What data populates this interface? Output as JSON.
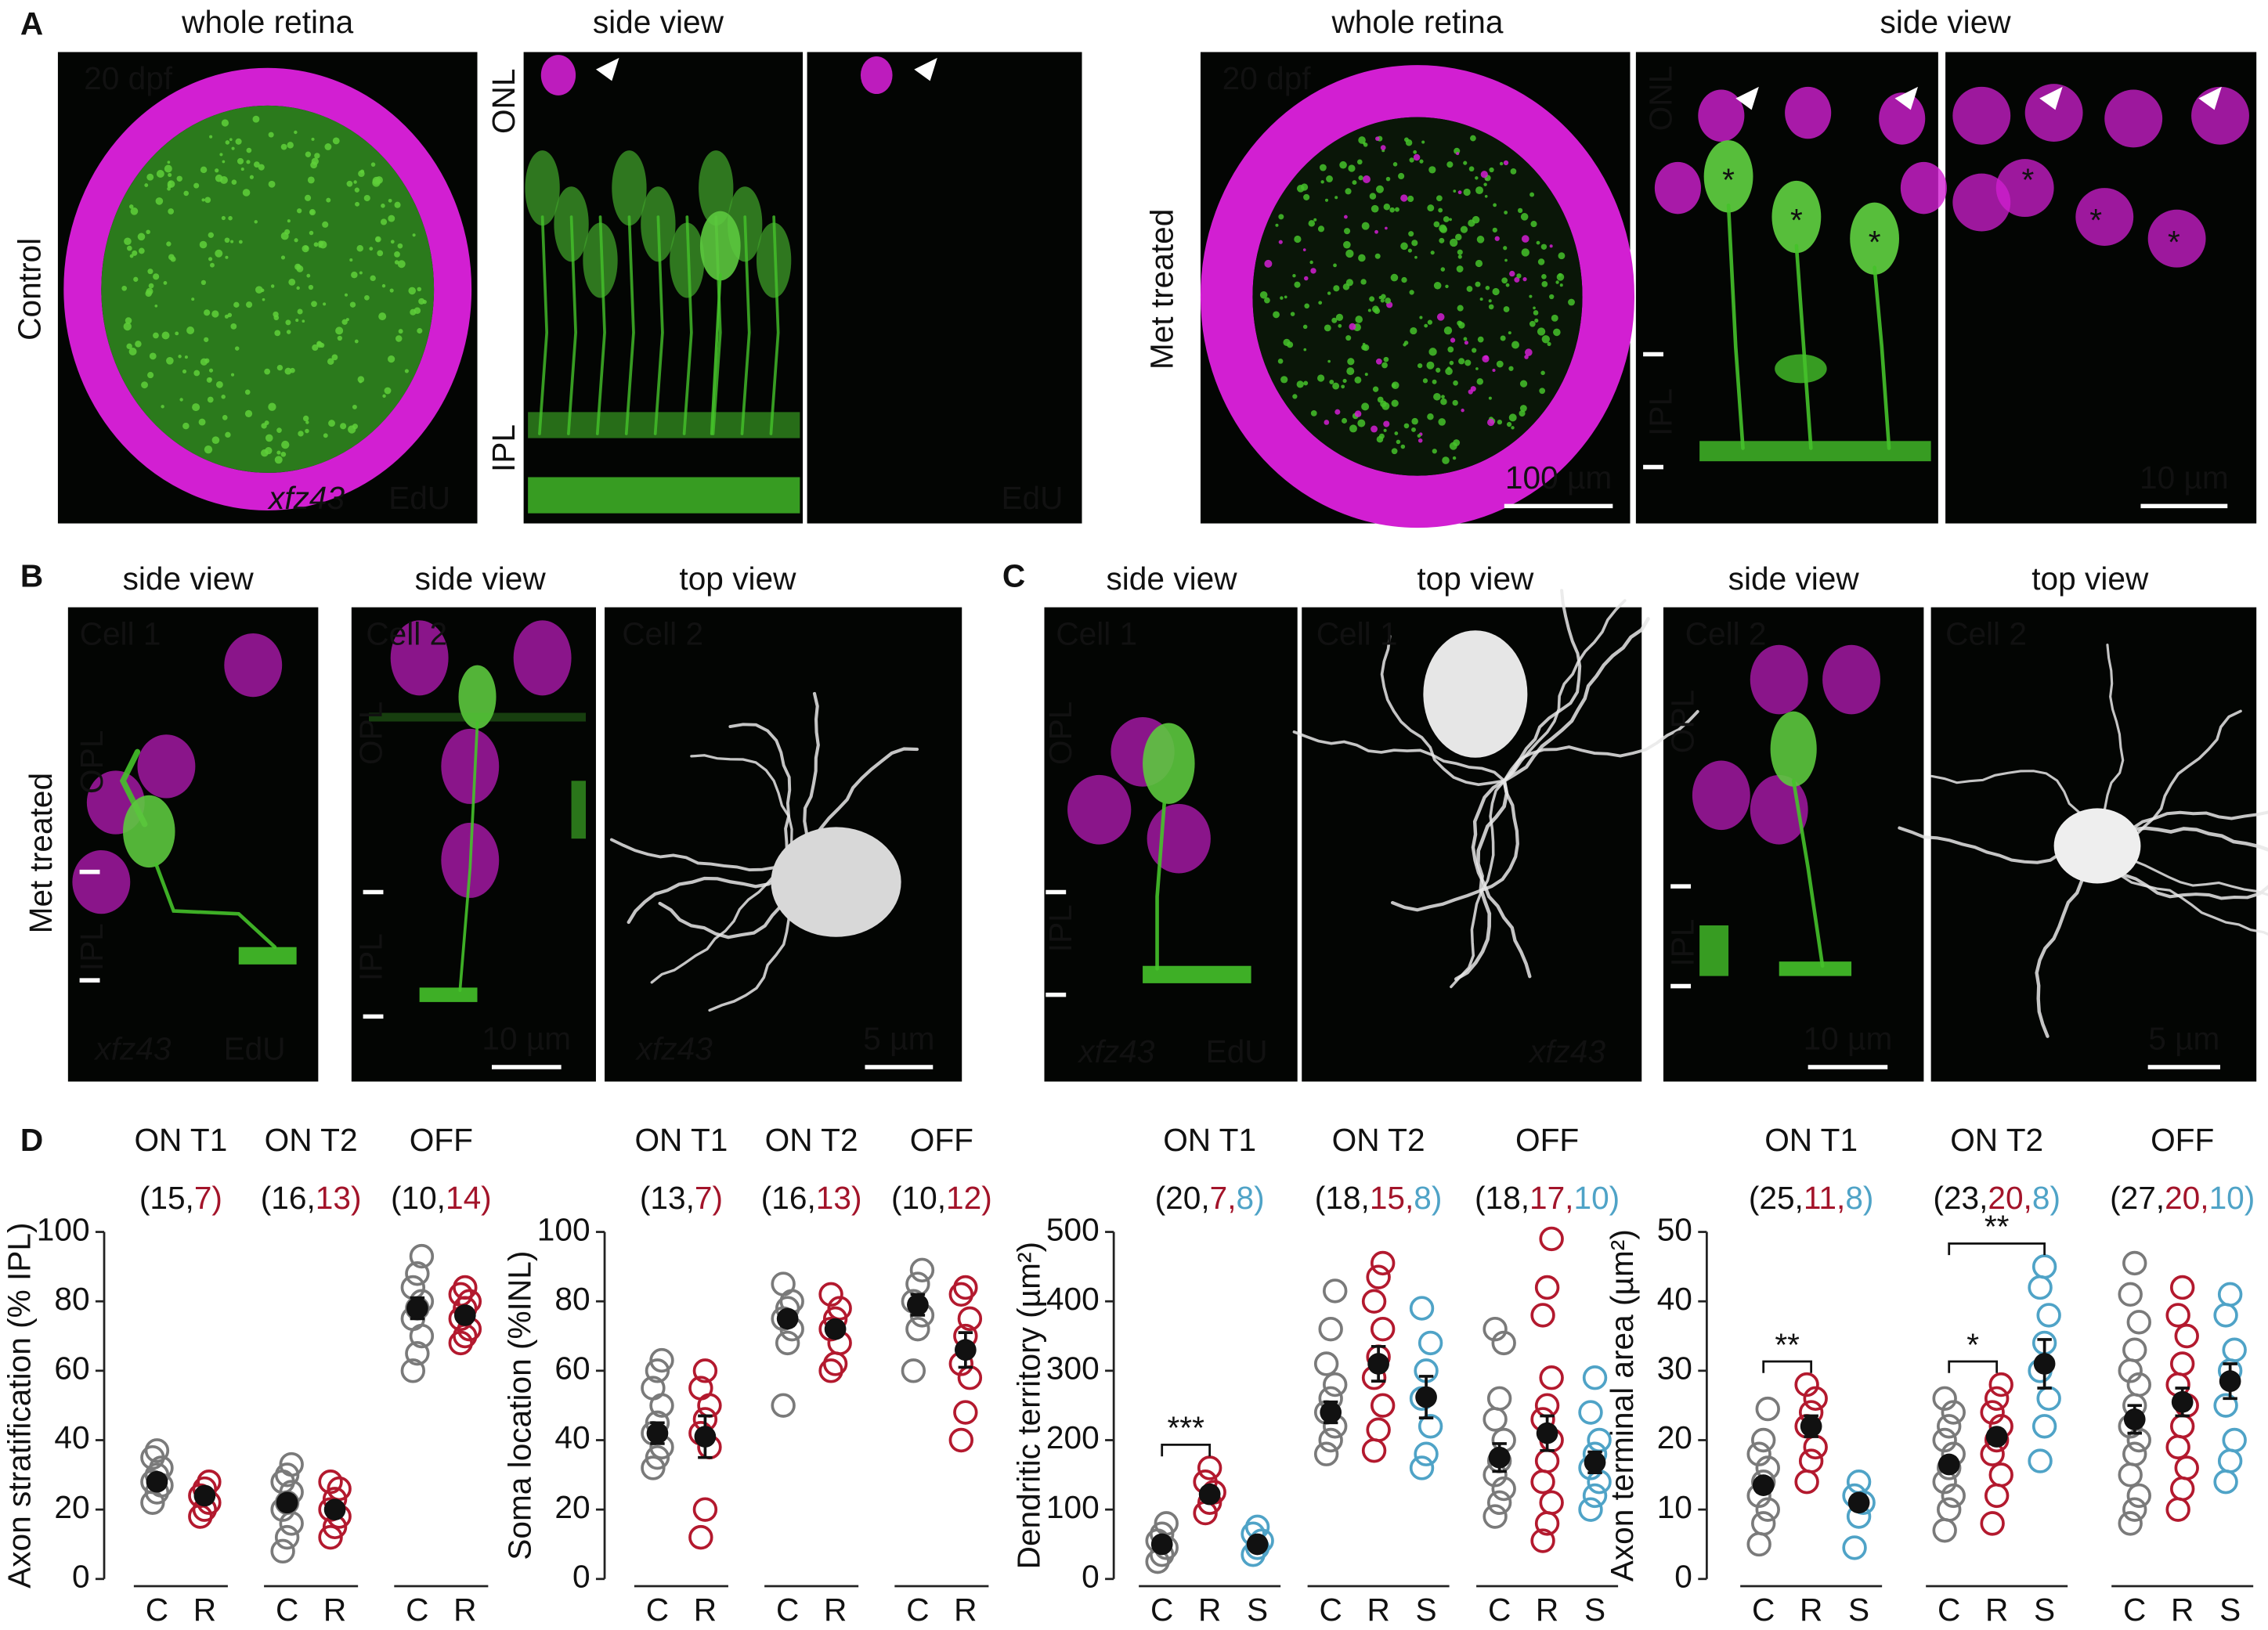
{
  "figure": {
    "panel_labels": [
      "A",
      "B",
      "C",
      "D"
    ],
    "conditions": [
      "Control",
      "Met treated"
    ],
    "views": [
      "whole retina",
      "side view",
      "top view"
    ],
    "age": "20 dpf",
    "reporter": "xfz43",
    "stain": "EdU",
    "layers": [
      "ONL",
      "OPL",
      "IPL"
    ],
    "cells": [
      "Cell 1",
      "Cell 2"
    ],
    "scale_bars": [
      "100 µm",
      "10 µm",
      "5 µm"
    ],
    "marker": "*"
  },
  "chart_data": [
    {
      "type": "strip",
      "ylabel": "Axon stratification (% IPL)",
      "ylim": [
        0,
        100
      ],
      "yticks": [
        0,
        20,
        40,
        60,
        80,
        100
      ],
      "groups": [
        {
          "title": "ON T1",
          "n_label": [
            "(15,",
            "7)"
          ],
          "series": [
            {
              "name": "C",
              "color": "#7a7a7a",
              "text_color": "#111111",
              "values": [
                22,
                25,
                27,
                28,
                30,
                32,
                35,
                37
              ],
              "mean": 28,
              "sem": 1.5
            },
            {
              "name": "R",
              "color": "#b3192e",
              "text_color": "#a3142a",
              "values": [
                18,
                20,
                22,
                24,
                26,
                28
              ],
              "mean": 24,
              "sem": 1.5
            }
          ]
        },
        {
          "title": "ON T2",
          "n_label": [
            "(16,",
            "13)"
          ],
          "series": [
            {
              "name": "C",
              "color": "#7a7a7a",
              "text_color": "#111111",
              "values": [
                8,
                12,
                16,
                20,
                22,
                25,
                28,
                30,
                33
              ],
              "mean": 22,
              "sem": 2
            },
            {
              "name": "R",
              "color": "#b3192e",
              "text_color": "#a3142a",
              "values": [
                12,
                15,
                18,
                20,
                23,
                26,
                28
              ],
              "mean": 20,
              "sem": 1.5
            }
          ]
        },
        {
          "title": "OFF",
          "n_label": [
            "(10,",
            "14)"
          ],
          "series": [
            {
              "name": "C",
              "color": "#7a7a7a",
              "text_color": "#111111",
              "values": [
                60,
                65,
                70,
                75,
                78,
                80,
                84,
                88,
                93
              ],
              "mean": 78,
              "sem": 3
            },
            {
              "name": "R",
              "color": "#b3192e",
              "text_color": "#a3142a",
              "values": [
                68,
                70,
                72,
                75,
                78,
                80,
                82,
                84
              ],
              "mean": 76,
              "sem": 1.5
            }
          ]
        }
      ]
    },
    {
      "type": "strip",
      "ylabel": "Soma location (%INL)",
      "ylim": [
        0,
        100
      ],
      "yticks": [
        0,
        20,
        40,
        60,
        80,
        100
      ],
      "groups": [
        {
          "title": "ON T1",
          "n_label": [
            "(13,",
            "7)"
          ],
          "series": [
            {
              "name": "C",
              "color": "#7a7a7a",
              "text_color": "#111111",
              "values": [
                32,
                35,
                38,
                42,
                45,
                50,
                55,
                60,
                63
              ],
              "mean": 42,
              "sem": 3
            },
            {
              "name": "R",
              "color": "#b3192e",
              "text_color": "#a3142a",
              "values": [
                12,
                20,
                38,
                42,
                46,
                50,
                55,
                60
              ],
              "mean": 41,
              "sem": 6
            }
          ]
        },
        {
          "title": "ON T2",
          "n_label": [
            "(16,",
            "13)"
          ],
          "series": [
            {
              "name": "C",
              "color": "#7a7a7a",
              "text_color": "#111111",
              "values": [
                50,
                68,
                72,
                75,
                78,
                80,
                85
              ],
              "mean": 75,
              "sem": 2
            },
            {
              "name": "R",
              "color": "#b3192e",
              "text_color": "#a3142a",
              "values": [
                60,
                62,
                68,
                72,
                75,
                78,
                82
              ],
              "mean": 72,
              "sem": 2
            }
          ]
        },
        {
          "title": "OFF",
          "n_label": [
            "(10,",
            "12)"
          ],
          "series": [
            {
              "name": "C",
              "color": "#7a7a7a",
              "text_color": "#111111",
              "values": [
                60,
                72,
                76,
                80,
                85,
                89
              ],
              "mean": 79,
              "sem": 3
            },
            {
              "name": "R",
              "color": "#b3192e",
              "text_color": "#a3142a",
              "values": [
                40,
                48,
                58,
                62,
                70,
                75,
                82,
                84
              ],
              "mean": 66,
              "sem": 5
            }
          ]
        }
      ]
    },
    {
      "type": "strip",
      "ylabel": "Dendritic territory (µm²)",
      "ylim": [
        0,
        500
      ],
      "yticks": [
        0,
        100,
        200,
        300,
        400,
        500
      ],
      "groups": [
        {
          "title": "ON T1",
          "n_label": [
            "(20,",
            "7,",
            "8)"
          ],
          "significance": [
            {
              "label": "***",
              "pair": [
                "C",
                "R"
              ]
            }
          ],
          "series": [
            {
              "name": "C",
              "color": "#7a7a7a",
              "text_color": "#111111",
              "values": [
                25,
                35,
                45,
                55,
                65,
                80
              ],
              "mean": 50,
              "sem": 4
            },
            {
              "name": "R",
              "color": "#b3192e",
              "text_color": "#a3142a",
              "values": [
                95,
                110,
                125,
                140,
                160
              ],
              "mean": 122,
              "sem": 8
            },
            {
              "name": "S",
              "color": "#4fa3c7",
              "text_color": "#4fa3c7",
              "values": [
                35,
                45,
                55,
                65,
                75
              ],
              "mean": 50,
              "sem": 5
            }
          ]
        },
        {
          "title": "ON T2",
          "n_label": [
            "(18,",
            "15,",
            "8)"
          ],
          "series": [
            {
              "name": "C",
              "color": "#7a7a7a",
              "text_color": "#111111",
              "values": [
                180,
                200,
                220,
                240,
                260,
                280,
                310,
                360,
                415
              ],
              "mean": 240,
              "sem": 15
            },
            {
              "name": "R",
              "color": "#b3192e",
              "text_color": "#a3142a",
              "values": [
                185,
                215,
                250,
                290,
                320,
                360,
                400,
                435,
                455
              ],
              "mean": 310,
              "sem": 25
            },
            {
              "name": "S",
              "color": "#4fa3c7",
              "text_color": "#4fa3c7",
              "values": [
                160,
                180,
                220,
                260,
                300,
                340,
                390
              ],
              "mean": 262,
              "sem": 30
            }
          ]
        },
        {
          "title": "OFF",
          "n_label": [
            "(18,",
            "17,",
            "10)"
          ],
          "series": [
            {
              "name": "C",
              "color": "#7a7a7a",
              "text_color": "#111111",
              "values": [
                90,
                110,
                130,
                150,
                170,
                200,
                230,
                260,
                340,
                360
              ],
              "mean": 175,
              "sem": 20
            },
            {
              "name": "R",
              "color": "#b3192e",
              "text_color": "#a3142a",
              "values": [
                55,
                80,
                110,
                140,
                170,
                200,
                230,
                250,
                290,
                380,
                420,
                490
              ],
              "mean": 210,
              "sem": 25
            },
            {
              "name": "S",
              "color": "#4fa3c7",
              "text_color": "#4fa3c7",
              "values": [
                100,
                120,
                140,
                160,
                180,
                200,
                240,
                290
              ],
              "mean": 168,
              "sem": 15
            }
          ]
        }
      ]
    },
    {
      "type": "strip",
      "ylabel": "Axon terminal area (µm²)",
      "ylim": [
        0,
        50
      ],
      "yticks": [
        0,
        10,
        20,
        30,
        40,
        50
      ],
      "groups": [
        {
          "title": "ON T1",
          "n_label": [
            "(25,",
            "11,",
            "8)"
          ],
          "significance": [
            {
              "label": "**",
              "pair": [
                "C",
                "R"
              ]
            }
          ],
          "series": [
            {
              "name": "C",
              "color": "#7a7a7a",
              "text_color": "#111111",
              "values": [
                5,
                8,
                10,
                12,
                14,
                16,
                18,
                20,
                24.5
              ],
              "mean": 13.5,
              "sem": 1
            },
            {
              "name": "R",
              "color": "#b3192e",
              "text_color": "#a3142a",
              "values": [
                14,
                17,
                19,
                22,
                24,
                26,
                28
              ],
              "mean": 22,
              "sem": 1.5
            },
            {
              "name": "S",
              "color": "#4fa3c7",
              "text_color": "#4fa3c7",
              "values": [
                4.5,
                9,
                11,
                12,
                14
              ],
              "mean": 11,
              "sem": 1
            }
          ]
        },
        {
          "title": "ON T2",
          "n_label": [
            "(23,",
            "20,",
            "8)"
          ],
          "significance": [
            {
              "label": "*",
              "pair": [
                "C",
                "R"
              ]
            },
            {
              "label": "**",
              "pair": [
                "C",
                "S"
              ]
            }
          ],
          "series": [
            {
              "name": "C",
              "color": "#7a7a7a",
              "text_color": "#111111",
              "values": [
                7,
                10,
                12,
                14,
                16,
                18,
                20,
                22,
                24,
                26
              ],
              "mean": 16.5,
              "sem": 1
            },
            {
              "name": "R",
              "color": "#b3192e",
              "text_color": "#a3142a",
              "values": [
                8,
                12,
                15,
                18,
                20,
                22,
                24,
                26,
                28
              ],
              "mean": 20.5,
              "sem": 1
            },
            {
              "name": "S",
              "color": "#4fa3c7",
              "text_color": "#4fa3c7",
              "values": [
                17,
                22,
                26,
                30,
                34,
                38,
                42,
                45
              ],
              "mean": 31,
              "sem": 3.5
            }
          ]
        },
        {
          "title": "OFF",
          "n_label": [
            "(27,",
            "20,",
            "10)"
          ],
          "series": [
            {
              "name": "C",
              "color": "#7a7a7a",
              "text_color": "#111111",
              "values": [
                8,
                10,
                12,
                15,
                18,
                20,
                22,
                25,
                28,
                30,
                33,
                37,
                41,
                45.5
              ],
              "mean": 23,
              "sem": 2
            },
            {
              "name": "R",
              "color": "#b3192e",
              "text_color": "#a3142a",
              "values": [
                10,
                13,
                16,
                19,
                22,
                25,
                28,
                31,
                35,
                38,
                42
              ],
              "mean": 25.5,
              "sem": 2
            },
            {
              "name": "S",
              "color": "#4fa3c7",
              "text_color": "#4fa3c7",
              "values": [
                14,
                17,
                20,
                25,
                30,
                33,
                38,
                41
              ],
              "mean": 28.5,
              "sem": 2.5
            }
          ]
        }
      ]
    }
  ]
}
